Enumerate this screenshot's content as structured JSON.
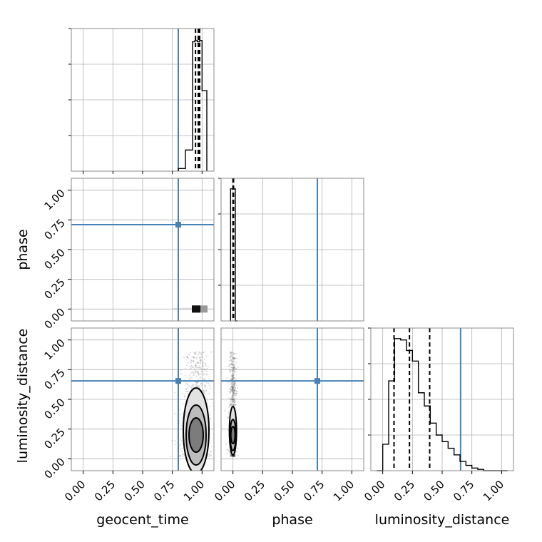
{
  "chart_data": {
    "type": "corner",
    "parameters": [
      "geocent_time",
      "phase",
      "luminosity_distance"
    ],
    "axis_range": [
      -0.1,
      1.1
    ],
    "ticks": [
      0.0,
      0.25,
      0.5,
      0.75,
      1.0
    ],
    "tick_labels": [
      "0.00",
      "0.25",
      "0.50",
      "0.75",
      "1.00"
    ],
    "grid": true,
    "colors": {
      "truth": "#4682b4",
      "hist": "#000000",
      "grid": "#b0b0b0"
    },
    "truths": {
      "geocent_time": 0.8,
      "phase": 0.71,
      "luminosity_distance": 0.655
    },
    "marginals": [
      {
        "parameter": "geocent_time",
        "bin_edges": [
          0.8,
          0.86,
          0.92,
          0.94,
          0.96,
          0.98,
          1.0,
          1.04
        ],
        "counts": [
          0.02,
          0.16,
          0.98,
          0.99,
          0.98,
          0.99,
          0.61
        ],
        "ymax": 1.08,
        "quantiles": [
          0.945,
          0.968,
          0.98
        ]
      },
      {
        "parameter": "phase",
        "bin_edges": [
          -0.02,
          0.0,
          0.02,
          0.04
        ],
        "counts": [
          1.0,
          1.0,
          0.0
        ],
        "ymax": 1.08,
        "quantiles": [
          0.0,
          0.002,
          0.005
        ]
      },
      {
        "parameter": "luminosity_distance",
        "bin_edges": [
          -0.05,
          0.0,
          0.05,
          0.1,
          0.15,
          0.2,
          0.25,
          0.3,
          0.35,
          0.4,
          0.45,
          0.5,
          0.55,
          0.6,
          0.65,
          0.7,
          0.75,
          0.8,
          0.85,
          0.9,
          0.95,
          1.0,
          1.05
        ],
        "counts": [
          0.0,
          0.2,
          0.68,
          1.0,
          0.99,
          0.91,
          0.83,
          0.59,
          0.49,
          0.36,
          0.27,
          0.22,
          0.17,
          0.12,
          0.07,
          0.04,
          0.02,
          0.01,
          0.0,
          0.0,
          0.0,
          0.0
        ],
        "ymax": 1.08,
        "quantiles": [
          0.095,
          0.225,
          0.395
        ]
      }
    ],
    "joint": [
      {
        "x": "geocent_time",
        "y": "phase",
        "density_center": [
          0.95,
          0.0
        ],
        "x_range": [
          0.75,
          1.03
        ],
        "y_range": [
          -0.01,
          0.01
        ]
      },
      {
        "x": "geocent_time",
        "y": "luminosity_distance",
        "density_center": [
          0.95,
          0.2
        ],
        "x_range": [
          0.78,
          1.01
        ],
        "y_range": [
          0.02,
          0.9
        ]
      },
      {
        "x": "phase",
        "y": "luminosity_distance",
        "density_center": [
          0.0,
          0.2
        ],
        "x_range": [
          -0.01,
          0.02
        ],
        "y_range": [
          0.02,
          0.9
        ]
      }
    ]
  }
}
